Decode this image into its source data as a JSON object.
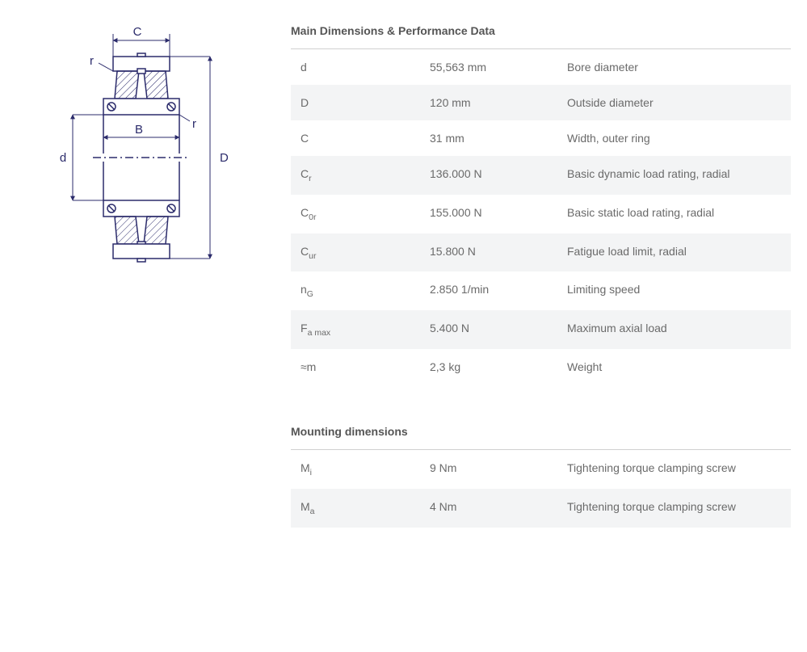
{
  "sections": {
    "main": {
      "title": "Main Dimensions & Performance Data",
      "rows": [
        {
          "symbol": "d",
          "sub": "",
          "value": "55,563 mm",
          "desc": "Bore diameter",
          "bg": "odd"
        },
        {
          "symbol": "D",
          "sub": "",
          "value": "120 mm",
          "desc": "Outside diameter",
          "bg": "even"
        },
        {
          "symbol": "C",
          "sub": "",
          "value": "31 mm",
          "desc": "Width, outer ring",
          "bg": "odd"
        },
        {
          "symbol": "C",
          "sub": "r",
          "value": "136.000 N",
          "desc": "Basic dynamic load rating, radial",
          "bg": "even"
        },
        {
          "symbol": "C",
          "sub": "0r",
          "value": "155.000 N",
          "desc": "Basic static load rating, radial",
          "bg": "odd"
        },
        {
          "symbol": "C",
          "sub": "ur",
          "value": "15.800 N",
          "desc": "Fatigue load limit, radial",
          "bg": "even"
        },
        {
          "symbol": "n",
          "sub": "G",
          "value": "2.850 1/min",
          "desc": "Limiting speed",
          "bg": "odd"
        },
        {
          "symbol": "F",
          "sub": "a max",
          "value": "5.400 N",
          "desc": "Maximum axial load",
          "bg": "even"
        },
        {
          "symbol": "≈m",
          "sub": "",
          "value": "2,3 kg",
          "desc": "Weight",
          "bg": "odd"
        }
      ]
    },
    "mounting": {
      "title": "Mounting dimensions",
      "rows": [
        {
          "symbol": "M",
          "sub": "i",
          "value": "9 Nm",
          "desc": "Tightening torque clamping screw",
          "bg": "odd"
        },
        {
          "symbol": "M",
          "sub": "a",
          "value": "4 Nm",
          "desc": "Tightening torque clamping screw",
          "bg": "even"
        }
      ]
    }
  },
  "diagram": {
    "labels": {
      "C": "C",
      "r_top": "r",
      "r_right": "r",
      "B": "B",
      "d": "d",
      "D": "D"
    },
    "colors": {
      "stroke": "#2b2b6b",
      "hatch": "#2b2b6b",
      "bg": "#ffffff",
      "text": "#2b2b6b"
    }
  },
  "style": {
    "row_odd_bg": "#ffffff",
    "row_even_bg": "#f3f4f5",
    "title_color": "#555555",
    "text_color": "#6a6a6a",
    "border_color": "#d0d0d0",
    "font_size_body": 14,
    "font_size_title": 14
  }
}
